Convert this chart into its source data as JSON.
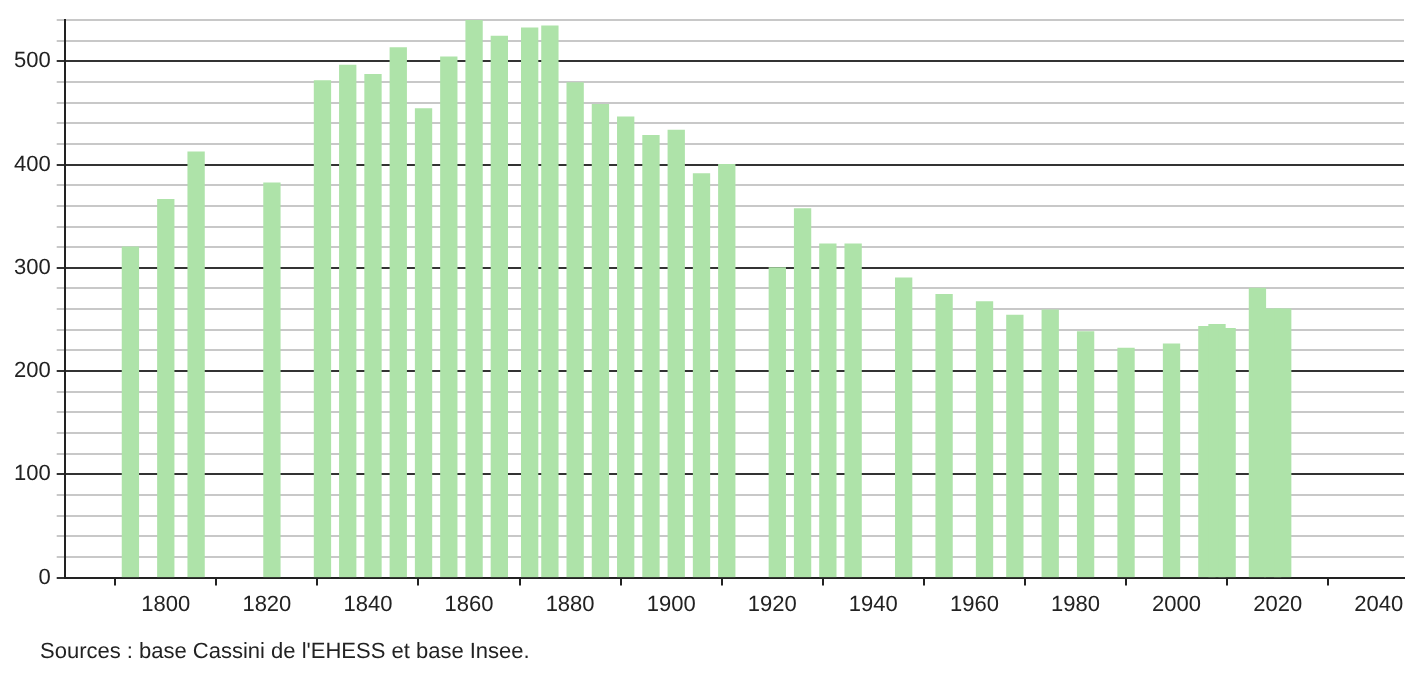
{
  "chart_data": {
    "type": "bar",
    "x": [
      1793,
      1800,
      1806,
      1821,
      1831,
      1836,
      1841,
      1846,
      1851,
      1856,
      1861,
      1866,
      1872,
      1876,
      1881,
      1886,
      1891,
      1896,
      1901,
      1906,
      1911,
      1921,
      1926,
      1931,
      1936,
      1946,
      1954,
      1962,
      1968,
      1975,
      1982,
      1990,
      1999,
      2006,
      2008,
      2010,
      2016,
      2019,
      2021
    ],
    "values": [
      320,
      366,
      412,
      382,
      481,
      496,
      487,
      513,
      454,
      504,
      540,
      524,
      532,
      534,
      479,
      458,
      446,
      428,
      433,
      391,
      400,
      300,
      357,
      323,
      323,
      290,
      274,
      267,
      254,
      259,
      238,
      222,
      226,
      243,
      245,
      241,
      280,
      260,
      260
    ],
    "color": "#aee3a9",
    "xlim": [
      1780,
      2045
    ],
    "xticks": [
      1800,
      1820,
      1840,
      1860,
      1880,
      1900,
      1920,
      1940,
      1960,
      1980,
      2000,
      2020,
      2040
    ],
    "ylim": [
      0,
      540
    ],
    "yticks": [
      0,
      {
        "value": 20,
        "label": null
      },
      {
        "value": 40,
        "label": null
      },
      {
        "value": 60,
        "label": null
      },
      {
        "value": 80,
        "label": null
      },
      100,
      {
        "value": 120,
        "label": null
      },
      {
        "value": 140,
        "label": null
      },
      {
        "value": 160,
        "label": null
      },
      {
        "value": 180,
        "label": null
      },
      200,
      {
        "value": 220,
        "label": null
      },
      {
        "value": 240,
        "label": null
      },
      {
        "value": 260,
        "label": null
      },
      {
        "value": 280,
        "label": null
      },
      300,
      {
        "value": 320,
        "label": null
      },
      {
        "value": 340,
        "label": null
      },
      {
        "value": 360,
        "label": null
      },
      {
        "value": 380,
        "label": null
      },
      400,
      {
        "value": 420,
        "label": null
      },
      {
        "value": 440,
        "label": null
      },
      {
        "value": 460,
        "label": null
      },
      {
        "value": 480,
        "label": null
      },
      500,
      {
        "value": 520,
        "label": null
      },
      {
        "value": 540,
        "label": null
      }
    ],
    "grid": true,
    "legend": false,
    "annotations": [
      "Sources : base Cassini de l'EHESS et base Insee."
    ]
  }
}
